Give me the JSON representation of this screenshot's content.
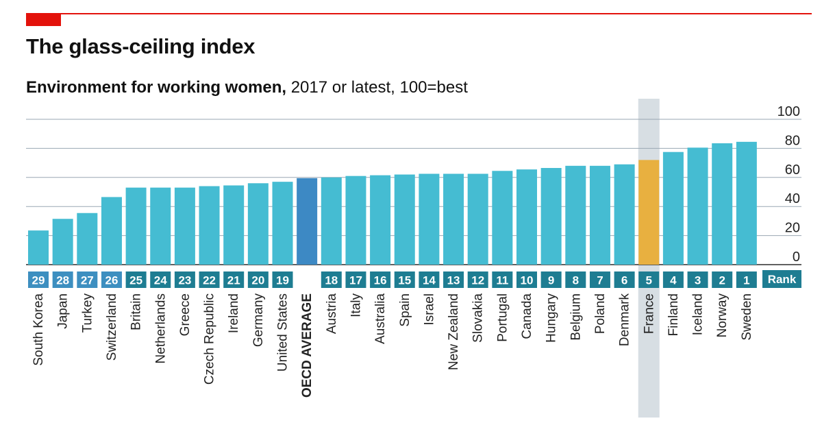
{
  "title": "The glass-ceiling index",
  "subtitle_bold": "Environment for working women,",
  "subtitle_rest": " 2017 or latest, 100=best",
  "rank_label": "Rank",
  "colors": {
    "bar": "#45bcd2",
    "average_bar": "#3d89c4",
    "france_bar": "#e8b040",
    "rank_box": "#1e7d92",
    "rank_box_light": "#3d8fc0",
    "highlight_band": "#d7dee3",
    "brand_red": "#e3120b",
    "grid": "#9aa7b3",
    "average_label": "#2a6fa8"
  },
  "chart_data": {
    "type": "bar",
    "title": "The glass-ceiling index",
    "subtitle": "Environment for working women, 2017 or latest, 100=best",
    "ylim": [
      0,
      100
    ],
    "yticks": [
      "100",
      "80",
      "60",
      "40",
      "20",
      "0"
    ],
    "yaxis_side": "right",
    "grid": true,
    "highlight_band_category": "France",
    "categories": [
      "South Korea",
      "Japan",
      "Turkey",
      "Switzerland",
      "Britain",
      "Netherlands",
      "Greece",
      "Czech Republic",
      "Ireland",
      "Germany",
      "United States",
      "OECD AVERAGE",
      "Austria",
      "Italy",
      "Australia",
      "Spain",
      "Israel",
      "New Zealand",
      "Slovakia",
      "Portugal",
      "Canada",
      "Hungary",
      "Belgium",
      "Poland",
      "Denmark",
      "France",
      "Finland",
      "Iceland",
      "Norway",
      "Sweden"
    ],
    "values": [
      23.5,
      31.5,
      35.5,
      46.5,
      53,
      53,
      53,
      54,
      54.5,
      56,
      57,
      59.5,
      60,
      61,
      61.5,
      62,
      62.5,
      62.5,
      62.5,
      64.5,
      65.5,
      66.5,
      68,
      68,
      69,
      72,
      77.5,
      80.5,
      83.5,
      84.5
    ],
    "ranks": [
      "29",
      "28",
      "27",
      "26",
      "25",
      "24",
      "23",
      "22",
      "21",
      "20",
      "19",
      "",
      "18",
      "17",
      "16",
      "15",
      "14",
      "13",
      "12",
      "11",
      "10",
      "9",
      "8",
      "7",
      "6",
      "5",
      "4",
      "3",
      "2",
      "1"
    ]
  }
}
